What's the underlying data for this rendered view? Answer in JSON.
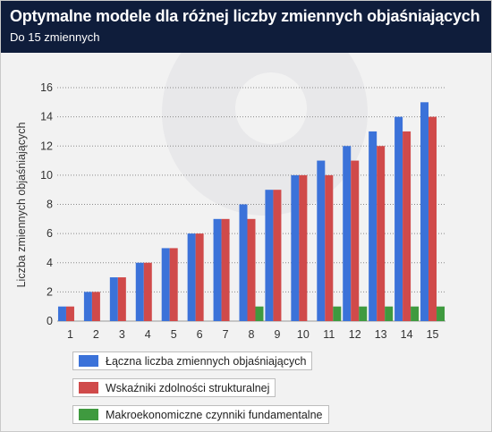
{
  "header": {
    "title": "Optymalne modele dla różnej liczby zmiennych objaśniających",
    "subtitle": "Do 15 zmiennych"
  },
  "colors": {
    "header_bg": "#0f1d3b",
    "series": [
      "#3b72d9",
      "#d04a4a",
      "#3f9a3f"
    ]
  },
  "chart_data": {
    "type": "bar",
    "categories": [
      "1",
      "2",
      "3",
      "4",
      "5",
      "6",
      "7",
      "8",
      "9",
      "10",
      "11",
      "12",
      "13",
      "14",
      "15"
    ],
    "series": [
      {
        "name": "Łączna liczba zmiennych objaśniających",
        "values": [
          1,
          2,
          3,
          4,
          5,
          6,
          7,
          8,
          9,
          10,
          11,
          12,
          13,
          14,
          15
        ]
      },
      {
        "name": "Wskaźniki zdolności strukturalnej",
        "values": [
          1,
          2,
          3,
          4,
          5,
          6,
          7,
          7,
          9,
          10,
          10,
          11,
          12,
          13,
          14
        ]
      },
      {
        "name": "Makroekonomiczne czynniki fundamentalne",
        "values": [
          0,
          0,
          0,
          0,
          0,
          0,
          0,
          1,
          0,
          0,
          1,
          1,
          1,
          1,
          1
        ]
      }
    ],
    "xlabel": "",
    "ylabel": "Liczba zmiennych objaśniających",
    "ylim": [
      0,
      16
    ],
    "yticks": [
      "0",
      "2",
      "4",
      "6",
      "8",
      "10",
      "12",
      "14",
      "16"
    ],
    "grid": true,
    "legend_position": "bottom-left"
  }
}
